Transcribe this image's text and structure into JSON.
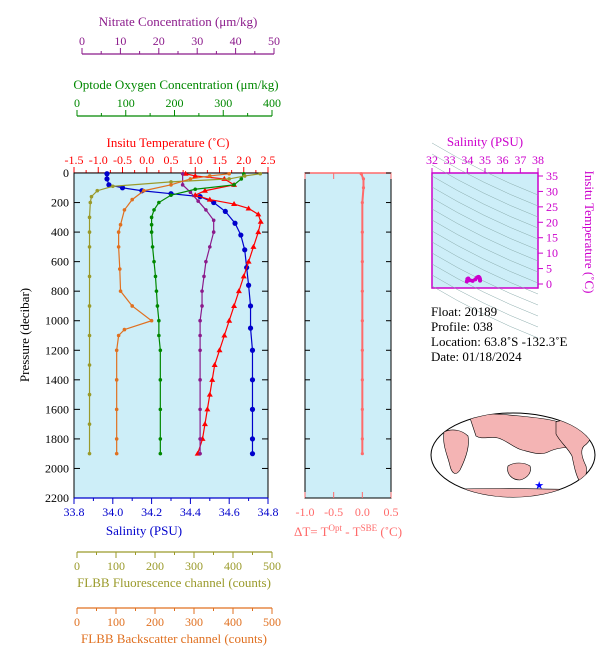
{
  "colors": {
    "nitrate": "#8b1a8b",
    "oxygen": "#008800",
    "temperature": "#ff0000",
    "salinity": "#0000cc",
    "fluorescence": "#9a9a2a",
    "backscatter": "#e07020",
    "dt": "#ff6a6a",
    "ts": "#cc00cc",
    "panel_bg": "#cdeef8",
    "land": "#f4b4b4"
  },
  "axes": {
    "nitrate": {
      "label": "Nitrate Concentration (μm/kg)",
      "ticks": [
        "0",
        "10",
        "20",
        "30",
        "40",
        "50"
      ]
    },
    "oxygen": {
      "label": "Optode Oxygen Concentration (μm/kg)",
      "ticks": [
        "0",
        "100",
        "200",
        "300",
        "400"
      ]
    },
    "temperature": {
      "label": "Insitu Temperature (˚C)",
      "ticks": [
        "-1.5",
        "-1.0",
        "-0.5",
        "0.0",
        "0.5",
        "1.0",
        "1.5",
        "2.0",
        "2.5"
      ]
    },
    "salinity": {
      "label": "Salinity (PSU)",
      "ticks": [
        "33.8",
        "34.0",
        "34.2",
        "34.4",
        "34.6",
        "34.8"
      ]
    },
    "pressure": {
      "label": "Pressure (decibar)",
      "ticks": [
        "0",
        "200",
        "400",
        "600",
        "800",
        "1000",
        "1200",
        "1400",
        "1600",
        "1800",
        "2000",
        "2200"
      ]
    },
    "fluorescence": {
      "label": "FLBB Fluorescence channel (counts)",
      "ticks": [
        "0",
        "100",
        "200",
        "300",
        "400",
        "500"
      ]
    },
    "backscatter": {
      "label": "FLBB Backscatter channel (counts)",
      "ticks": [
        "0",
        "100",
        "200",
        "300",
        "400",
        "500"
      ]
    },
    "dt": {
      "label_main": "ΔT= T",
      "label_sup1": "Opt",
      "label_mid": " - T",
      "label_sup2": "SBE",
      "label_end": " (˚C)",
      "ticks": [
        "-1.0",
        "-0.5",
        "0.0",
        "0.5"
      ]
    },
    "ts_salinity": {
      "label": "Salinity (PSU)",
      "ticks": [
        "32",
        "33",
        "34",
        "35",
        "36",
        "37",
        "38"
      ]
    },
    "ts_temperature": {
      "label": "Insitu Temperature (˚C)",
      "ticks": [
        "0",
        "5",
        "10",
        "15",
        "20",
        "25",
        "30",
        "35"
      ]
    }
  },
  "info": {
    "float": "Float:  20189",
    "profile": "Profile:  038",
    "location": "Location:  63.8˚S  -132.3˚E",
    "date": "Date:  01/18/2024"
  },
  "chart_data": {
    "type": "line",
    "y": {
      "name": "Pressure (decibar)",
      "range": [
        2200,
        0
      ],
      "reversed": true
    },
    "series": [
      {
        "name": "Salinity (PSU)",
        "axis": "salinity",
        "range": [
          33.8,
          34.8
        ],
        "marker": "circle",
        "points": [
          [
            33.97,
            5
          ],
          [
            33.97,
            40
          ],
          [
            33.98,
            80
          ],
          [
            34.05,
            100
          ],
          [
            34.15,
            120
          ],
          [
            34.3,
            140
          ],
          [
            34.45,
            160
          ],
          [
            34.52,
            200
          ],
          [
            34.58,
            260
          ],
          [
            34.63,
            340
          ],
          [
            34.66,
            420
          ],
          [
            34.68,
            520
          ],
          [
            34.69,
            640
          ],
          [
            34.7,
            760
          ],
          [
            34.71,
            900
          ],
          [
            34.71,
            1050
          ],
          [
            34.72,
            1200
          ],
          [
            34.72,
            1400
          ],
          [
            34.72,
            1600
          ],
          [
            34.72,
            1800
          ],
          [
            34.72,
            1900
          ]
        ]
      },
      {
        "name": "Insitu Temperature (˚C)",
        "axis": "temperature",
        "range": [
          -1.5,
          2.5
        ],
        "marker": "triangle",
        "points": [
          [
            0.8,
            5
          ],
          [
            1.0,
            20
          ],
          [
            1.6,
            40
          ],
          [
            1.8,
            80
          ],
          [
            1.2,
            120
          ],
          [
            1.0,
            150
          ],
          [
            1.3,
            180
          ],
          [
            1.8,
            210
          ],
          [
            2.1,
            240
          ],
          [
            2.3,
            280
          ],
          [
            2.35,
            330
          ],
          [
            2.3,
            400
          ],
          [
            2.2,
            500
          ],
          [
            2.1,
            600
          ],
          [
            2.0,
            700
          ],
          [
            1.9,
            800
          ],
          [
            1.8,
            900
          ],
          [
            1.7,
            1000
          ],
          [
            1.6,
            1100
          ],
          [
            1.5,
            1200
          ],
          [
            1.4,
            1300
          ],
          [
            1.35,
            1400
          ],
          [
            1.3,
            1500
          ],
          [
            1.25,
            1600
          ],
          [
            1.2,
            1700
          ],
          [
            1.15,
            1800
          ],
          [
            1.05,
            1900
          ]
        ]
      },
      {
        "name": "Nitrate Concentration (μm/kg)",
        "axis": "nitrate",
        "range": [
          0,
          50
        ],
        "marker": "circle",
        "points": [
          [
            28,
            5
          ],
          [
            28,
            80
          ],
          [
            30,
            130
          ],
          [
            32,
            190
          ],
          [
            34,
            250
          ],
          [
            36,
            320
          ],
          [
            36,
            400
          ],
          [
            35,
            500
          ],
          [
            34,
            600
          ],
          [
            33.5,
            700
          ],
          [
            33,
            800
          ],
          [
            33,
            900
          ],
          [
            32.5,
            1000
          ],
          [
            32.5,
            1100
          ],
          [
            32.5,
            1200
          ],
          [
            32.5,
            1400
          ],
          [
            32.5,
            1600
          ],
          [
            32.5,
            1800
          ],
          [
            32.5,
            1900
          ]
        ]
      },
      {
        "name": "Optode Oxygen Concentration (μm/kg)",
        "axis": "oxygen",
        "range": [
          0,
          400
        ],
        "marker": "circle",
        "points": [
          [
            350,
            5
          ],
          [
            345,
            40
          ],
          [
            330,
            80
          ],
          [
            250,
            110
          ],
          [
            200,
            150
          ],
          [
            175,
            200
          ],
          [
            165,
            250
          ],
          [
            160,
            300
          ],
          [
            160,
            350
          ],
          [
            160,
            400
          ],
          [
            162,
            500
          ],
          [
            165,
            600
          ],
          [
            168,
            700
          ],
          [
            170,
            800
          ],
          [
            172,
            900
          ],
          [
            175,
            1000
          ],
          [
            175,
            1100
          ],
          [
            178,
            1200
          ],
          [
            178,
            1400
          ],
          [
            178,
            1600
          ],
          [
            178,
            1800
          ],
          [
            178,
            1900
          ]
        ]
      },
      {
        "name": "FLBB Fluorescence channel (counts)",
        "axis": "fluorescence",
        "range": [
          0,
          500
        ],
        "marker": "circle",
        "points": [
          [
            480,
            5
          ],
          [
            440,
            20
          ],
          [
            400,
            40
          ],
          [
            250,
            60
          ],
          [
            100,
            90
          ],
          [
            60,
            120
          ],
          [
            45,
            160
          ],
          [
            42,
            200
          ],
          [
            40,
            300
          ],
          [
            40,
            400
          ],
          [
            40,
            500
          ],
          [
            40,
            700
          ],
          [
            40,
            900
          ],
          [
            40,
            1100
          ],
          [
            40,
            1300
          ],
          [
            40,
            1500
          ],
          [
            40,
            1700
          ],
          [
            40,
            1900
          ]
        ]
      },
      {
        "name": "FLBB Backscatter channel (counts)",
        "axis": "backscatter",
        "range": [
          0,
          500
        ],
        "marker": "circle",
        "points": [
          [
            400,
            5
          ],
          [
            350,
            20
          ],
          [
            300,
            40
          ],
          [
            250,
            80
          ],
          [
            180,
            120
          ],
          [
            150,
            180
          ],
          [
            130,
            250
          ],
          [
            120,
            350
          ],
          [
            115,
            400
          ],
          [
            115,
            500
          ],
          [
            118,
            650
          ],
          [
            120,
            800
          ],
          [
            150,
            900
          ],
          [
            200,
            1000
          ],
          [
            130,
            1060
          ],
          [
            115,
            1100
          ],
          [
            110,
            1200
          ],
          [
            110,
            1400
          ],
          [
            110,
            1600
          ],
          [
            110,
            1800
          ],
          [
            110,
            1900
          ]
        ]
      }
    ],
    "dt": {
      "axis": "dt",
      "range": [
        -1.0,
        0.5
      ],
      "points": [
        [
          -0.02,
          5
        ],
        [
          0.02,
          40
        ],
        [
          0.02,
          100
        ],
        [
          0.0,
          200
        ],
        [
          0.0,
          400
        ],
        [
          0.0,
          600
        ],
        [
          0.0,
          800
        ],
        [
          0.0,
          1000
        ],
        [
          0.0,
          1200
        ],
        [
          0.0,
          1400
        ],
        [
          0.0,
          1600
        ],
        [
          0.0,
          1800
        ],
        [
          0.0,
          1900
        ]
      ]
    },
    "ts": {
      "salinity_range": [
        32,
        38
      ],
      "temperature_range": [
        -1.5,
        35
      ],
      "points": [
        [
          33.97,
          0.8
        ],
        [
          34.0,
          1.6
        ],
        [
          34.05,
          1.8
        ],
        [
          34.15,
          1.2
        ],
        [
          34.3,
          1.0
        ],
        [
          34.45,
          1.5
        ],
        [
          34.55,
          2.1
        ],
        [
          34.63,
          2.3
        ],
        [
          34.66,
          2.2
        ],
        [
          34.69,
          2.0
        ],
        [
          34.7,
          1.8
        ],
        [
          34.71,
          1.6
        ],
        [
          34.72,
          1.3
        ],
        [
          34.72,
          1.1
        ]
      ]
    },
    "location": {
      "lat": -63.8,
      "lon": -132.3
    }
  }
}
